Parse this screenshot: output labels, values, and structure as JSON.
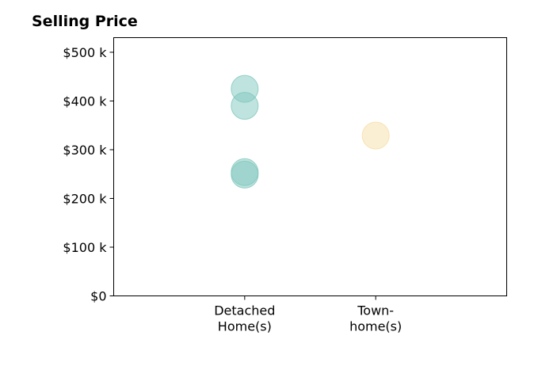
{
  "chart_data": {
    "type": "scatter",
    "title": "Selling Price",
    "xlabel": "",
    "ylabel": "",
    "categories": [
      [
        "Detached",
        "Home(s)"
      ],
      [
        "Town-",
        "home(s)"
      ]
    ],
    "y_ticks": [
      {
        "value": 0,
        "label": "$0"
      },
      {
        "value": 100000,
        "label": "$100 k"
      },
      {
        "value": 200000,
        "label": "$200 k"
      },
      {
        "value": 300000,
        "label": "$300 k"
      },
      {
        "value": 400000,
        "label": "$400 k"
      },
      {
        "value": 500000,
        "label": "$500 k"
      }
    ],
    "ylim": [
      0,
      530000
    ],
    "x_range": [
      0,
      3
    ],
    "grid": false,
    "series": [
      {
        "category": "Detached Home(s)",
        "color": "#7fc7bd",
        "values": [
          425000,
          390000,
          254000,
          249000
        ]
      },
      {
        "category": "Town-home(s)",
        "color": "#f5dfa6",
        "values": [
          329000
        ]
      }
    ]
  }
}
